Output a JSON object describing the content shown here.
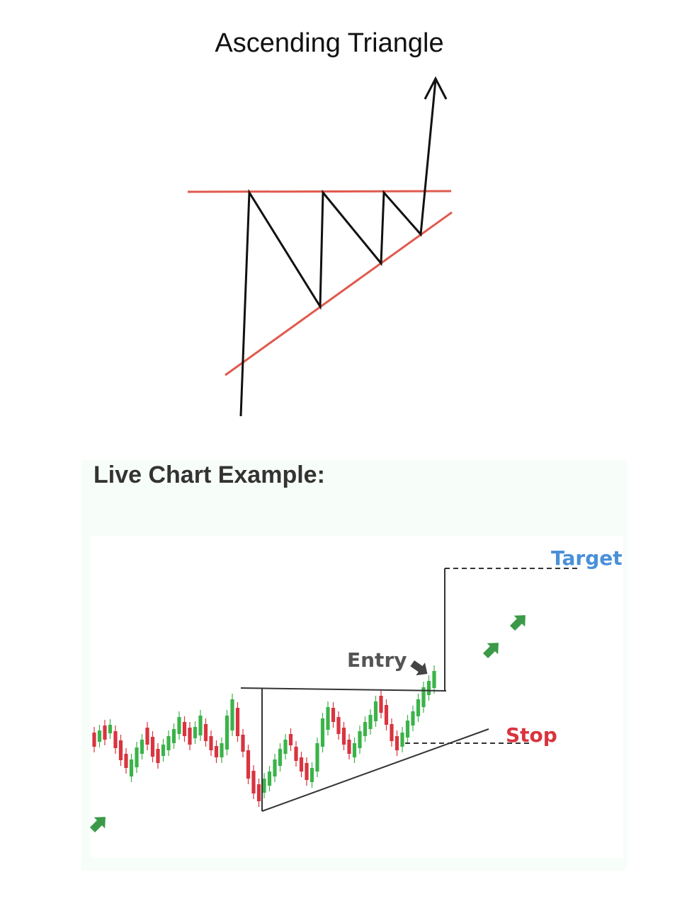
{
  "diagram": {
    "title": "Ascending Triangle"
  },
  "live_chart": {
    "heading": "Live Chart Example:",
    "labels": {
      "entry": "Entry",
      "target": "Target",
      "stop": "Stop"
    }
  },
  "colors": {
    "resistance_line": "#e05a4e",
    "price_path": "#111111",
    "bull_candle": "#3bb34a",
    "bear_candle": "#d9343f",
    "target_label": "#4a90d9",
    "stop_label": "#d9343f",
    "entry_label": "#555555",
    "panel_background": "#f7fdf8"
  },
  "icons": [
    "up-arrow-icon",
    "entry-arrow-icon",
    "green-up-arrow-icon"
  ]
}
